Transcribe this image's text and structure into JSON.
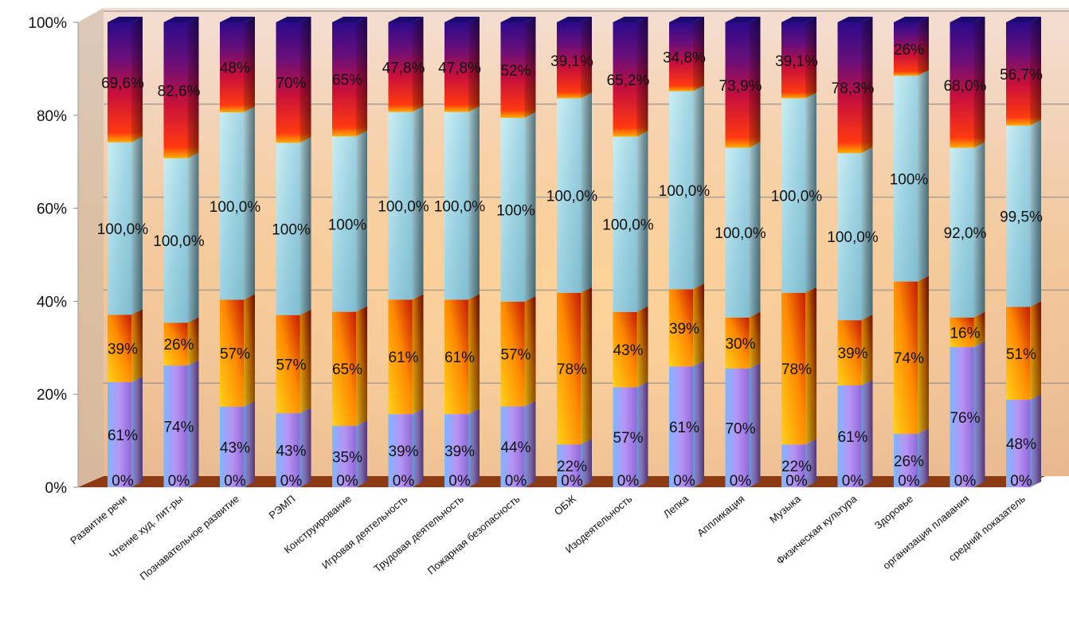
{
  "chart_data": {
    "type": "bar",
    "stacked": true,
    "normalized": true,
    "ylim": [
      0,
      100
    ],
    "yticks": [
      "0%",
      "20%",
      "40%",
      "60%",
      "80%",
      "100%"
    ],
    "grid": true,
    "legend": "none",
    "categories": [
      "Развитие речи",
      "Чтение худ. лит-ры",
      "Познавательное развитие",
      "РЭМП",
      "Конструирование",
      "Игровая деятельность",
      "Трудовая деятельность",
      "Пожарная безопасность",
      "ОБЖ",
      "Изодеятельность",
      "Лепка",
      "Аппликация",
      "Музыка",
      "Физическая культура",
      "Здоровье",
      "организация плавания",
      "средний показатель"
    ],
    "series": [
      {
        "labels": [
          "0%",
          "0%",
          "0%",
          "0%",
          "0%",
          "0%",
          "0%",
          "0%",
          "0%",
          "0%",
          "0%",
          "0%",
          "0%",
          "0%",
          "0%",
          "0%",
          "0%"
        ],
        "values": [
          0,
          0,
          0,
          0,
          0,
          0,
          0,
          0,
          0,
          0,
          0,
          0,
          0,
          0,
          0,
          0,
          0
        ]
      },
      {
        "labels": [
          "61%",
          "74%",
          "43%",
          "43%",
          "35%",
          "39%",
          "39%",
          "44%",
          "22%",
          "57%",
          "61%",
          "70%",
          "22%",
          "61%",
          "26%",
          "76%",
          "48%"
        ],
        "values": [
          61,
          74,
          43,
          43,
          35,
          39,
          39,
          44,
          22,
          57,
          61,
          70,
          22,
          61,
          26,
          76,
          48
        ]
      },
      {
        "labels": [
          "39%",
          "26%",
          "57%",
          "57%",
          "65%",
          "61%",
          "61%",
          "57%",
          "78%",
          "43%",
          "39%",
          "30%",
          "78%",
          "39%",
          "74%",
          "16%",
          "51%"
        ],
        "values": [
          39,
          26,
          57,
          57,
          65,
          61,
          61,
          57,
          78,
          43,
          39,
          30,
          78,
          39,
          74,
          16,
          51
        ]
      },
      {
        "labels": [
          "100,0%",
          "100,0%",
          "100,0%",
          "100%",
          "100%",
          "100,0%",
          "100,0%",
          "100%",
          "100,0%",
          "100,0%",
          "100,0%",
          "100,0%",
          "100,0%",
          "100,0%",
          "100%",
          "92,0%",
          "99,5%"
        ],
        "values": [
          100,
          100,
          100,
          100,
          100,
          100,
          100,
          100,
          100,
          100,
          100,
          100,
          100,
          100,
          100,
          92,
          99.5
        ]
      },
      {
        "labels": [
          "",
          "",
          "",
          "",
          "",
          "",
          "",
          "",
          "",
          "",
          "",
          "",
          "",
          "",
          "",
          "",
          ""
        ],
        "values": [
          0,
          0,
          0,
          0,
          0,
          0,
          0,
          0,
          0,
          0,
          0,
          0,
          0,
          0,
          0,
          0,
          0
        ]
      },
      {
        "labels": [
          "69,6%",
          "82,6%",
          "48%",
          "70%",
          "65%",
          "47,8%",
          "47,8%",
          "52%",
          "39,1%",
          "65,2%",
          "34,8%",
          "73,9%",
          "39,1%",
          "78,3%",
          "26%",
          "68,0%",
          "56,7%"
        ],
        "values": [
          69.6,
          82.6,
          48,
          70,
          65,
          47.8,
          47.8,
          52,
          39.1,
          65.2,
          34.8,
          73.9,
          39.1,
          78.3,
          26,
          68,
          56.7
        ]
      }
    ],
    "colors": {
      "lavender": "#b98ff0",
      "orange": "#ff8c00",
      "red": "#d31a0a",
      "ice": "#a9dde8",
      "crimson": "#e0102a",
      "indigo": "#3b0a8a",
      "floor": "#8b3a12",
      "background": "#e6c3a0",
      "label_text": "#111111"
    }
  }
}
